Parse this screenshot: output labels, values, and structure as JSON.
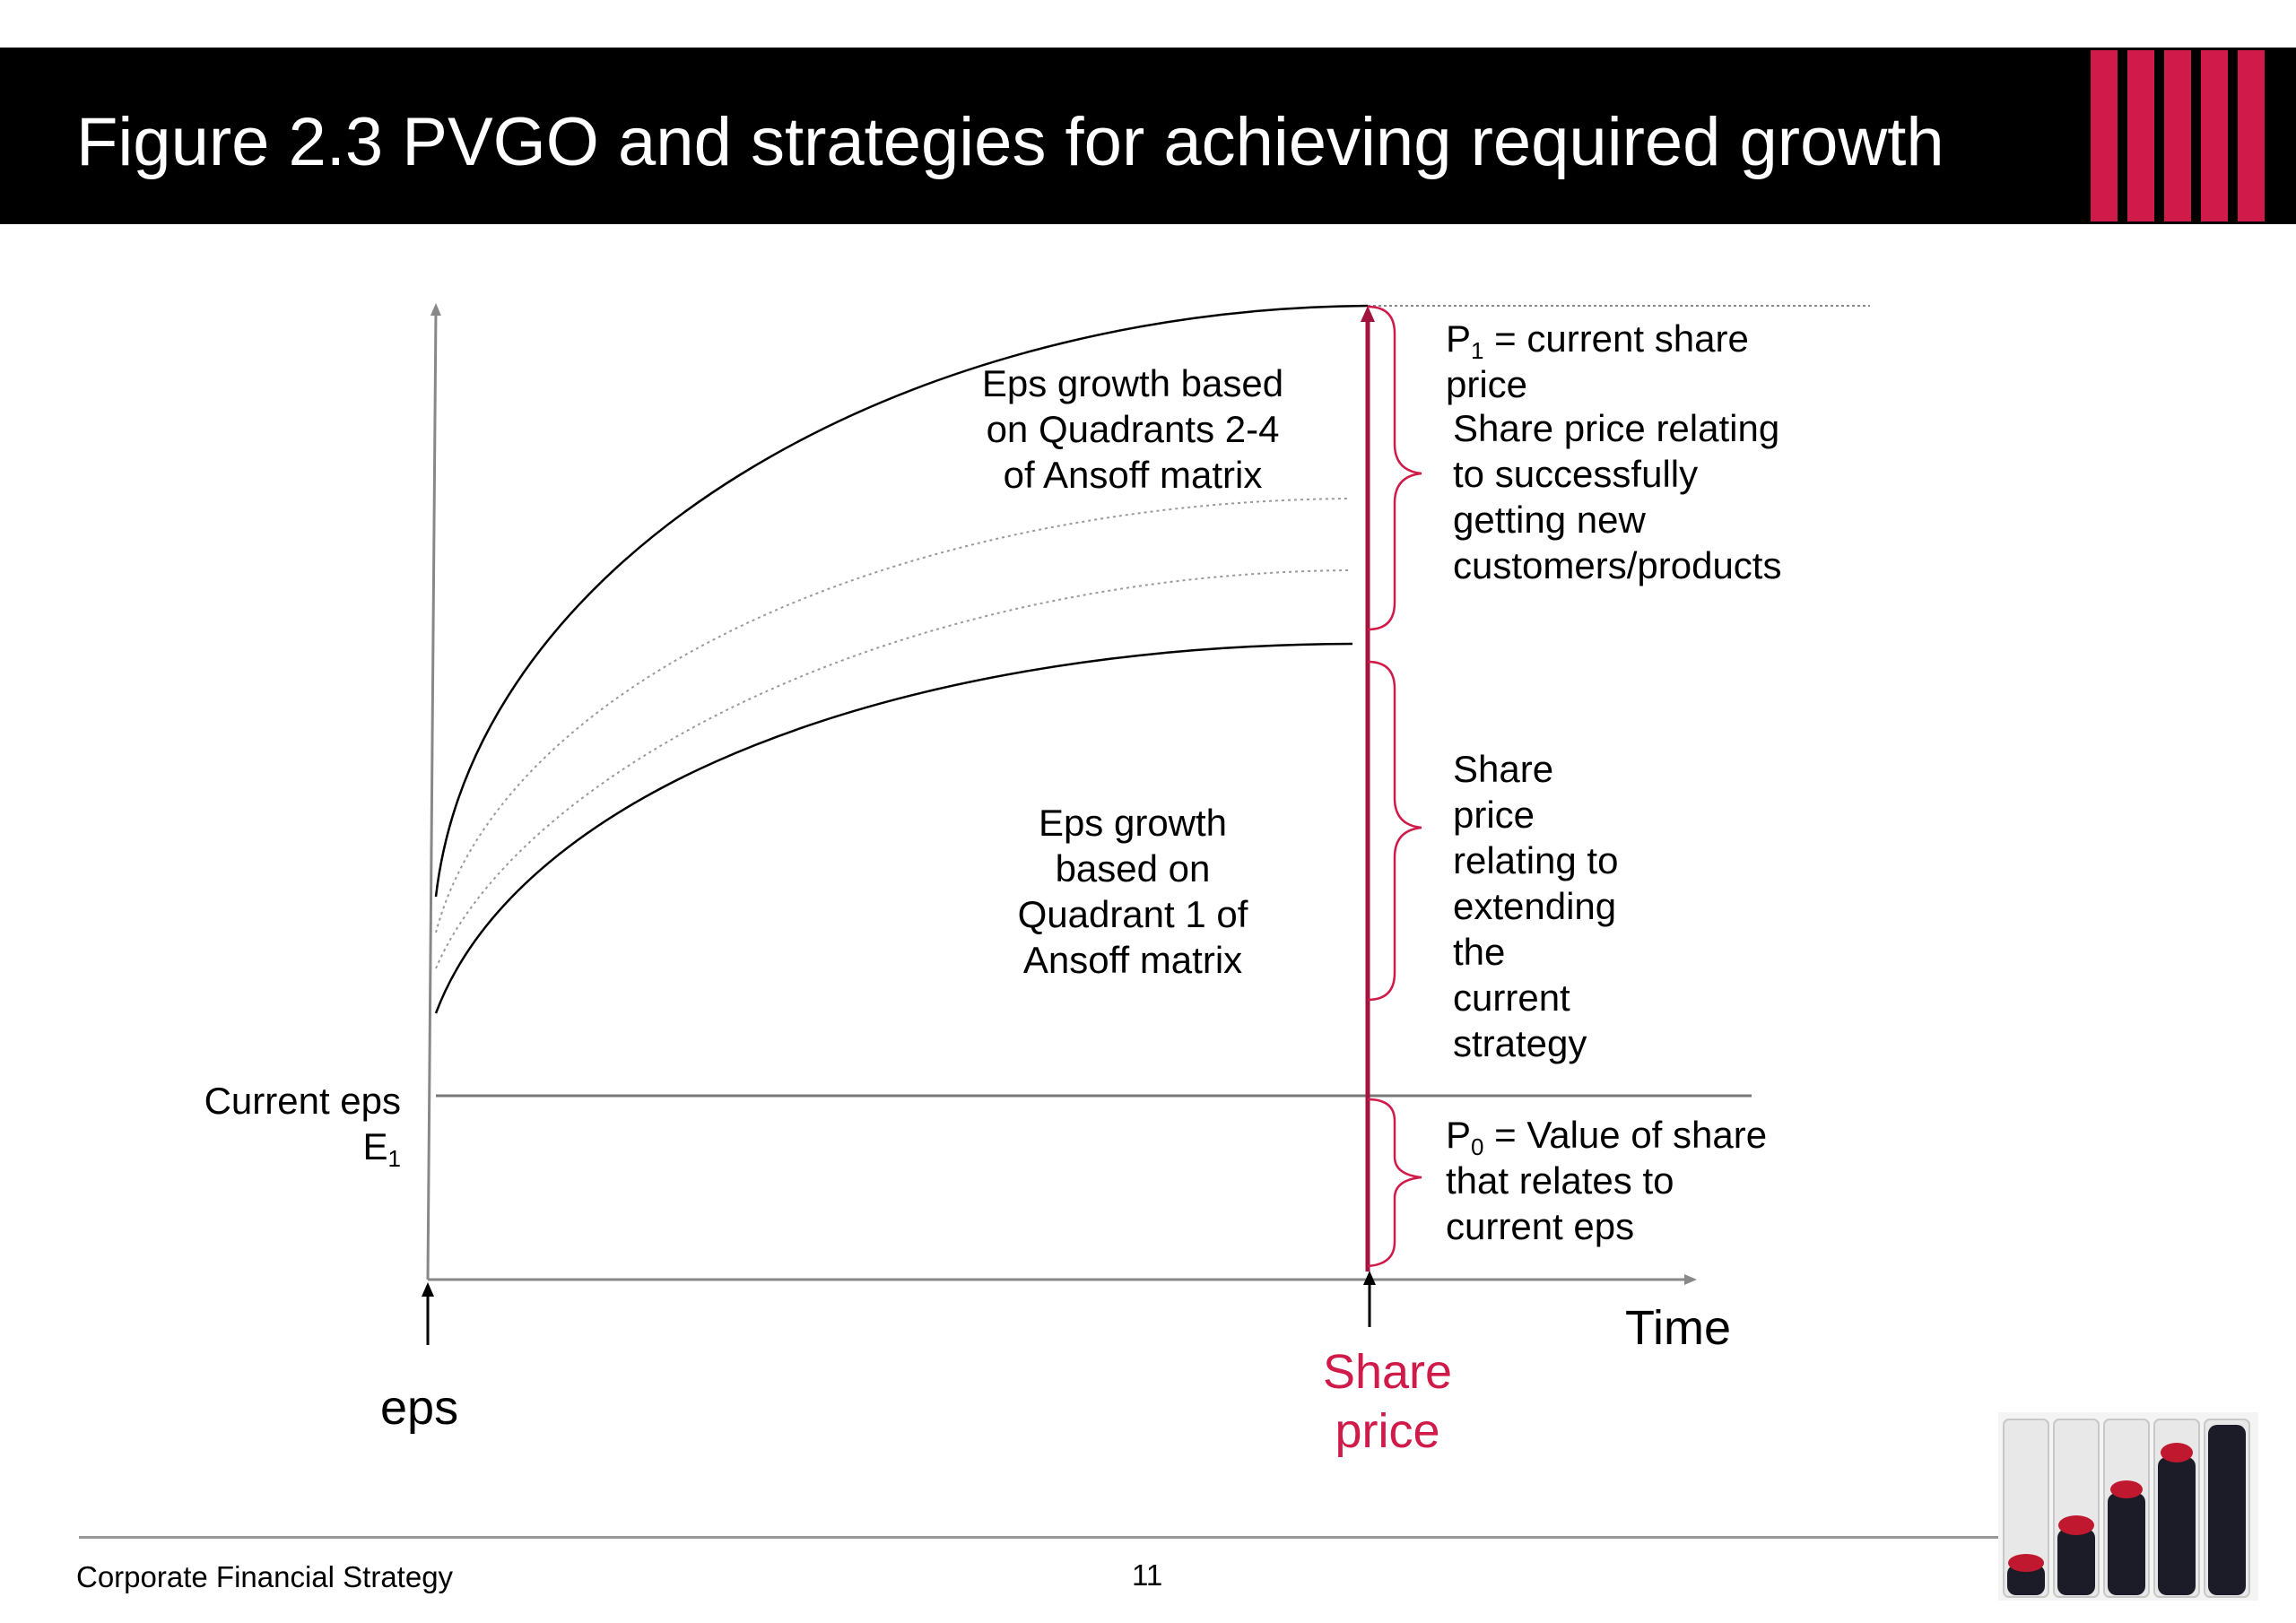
{
  "title": "Figure 2.3  PVGO and strategies for achieving required growth",
  "colors": {
    "accent": "#d01a4a",
    "share_price_line": "#a1143d",
    "title_bar": "#000000",
    "axis": "#888888",
    "curve": "#000000",
    "dotted_curve": "#9a9a9a"
  },
  "labels": {
    "upper_growth": [
      "Eps growth based",
      "on Quadrants 2-4",
      "of Ansoff matrix"
    ],
    "lower_growth": [
      "Eps growth",
      "based on",
      "Quadrant 1 of",
      "Ansoff matrix"
    ],
    "p1_symbol": "P",
    "p1_sub": "1",
    "p1_rest": " = current share",
    "p1_line2": "price",
    "upper_brace": [
      "Share price relating",
      "to successfully",
      "getting new",
      "customers/products"
    ],
    "middle_brace": [
      "Share",
      "price",
      "relating to",
      "extending",
      "the",
      "current",
      "strategy"
    ],
    "p0_symbol": "P",
    "p0_sub": "0",
    "p0_rest": " = Value of share",
    "p0_line2": "that relates to",
    "p0_line3": "current eps",
    "current_eps": "Current eps",
    "e1_symbol": "E",
    "e1_sub": "1",
    "time": "Time",
    "eps": "eps",
    "share_price": [
      "Share",
      "price"
    ]
  },
  "footer": {
    "left": "Corporate Financial Strategy",
    "page": "11"
  }
}
